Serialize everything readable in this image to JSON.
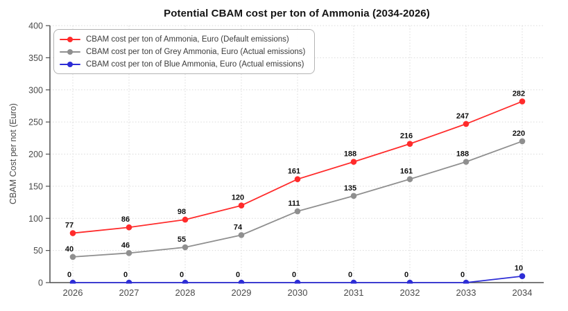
{
  "chart_data": {
    "type": "line",
    "title": "Potential CBAM cost per ton of Ammonia (2034-2026)",
    "xlabel": "",
    "ylabel": "CBAM Cost per not (Euro)",
    "categories": [
      "2026",
      "2027",
      "2028",
      "2029",
      "2030",
      "2031",
      "2032",
      "2033",
      "2034"
    ],
    "yticks": [
      0,
      50,
      100,
      150,
      200,
      250,
      300,
      350,
      400
    ],
    "ylim": [
      0,
      400
    ],
    "grid": true,
    "grid_style": "dashed",
    "legend_position": "upper-left",
    "grid_color": "#d9d9d9",
    "axis_color": "#4d4d4d",
    "tick_color": "#4a4a4a",
    "data_label_color": "#0f0f0f",
    "background_color": "#ffffff",
    "series": [
      {
        "name": "CBAM cost per ton of Ammonia, Euro (Default emissions)",
        "color": "#ff2b2b",
        "values": [
          77,
          86,
          98,
          120,
          161,
          188,
          216,
          247,
          282
        ]
      },
      {
        "name": "CBAM cost per ton of Grey Ammonia, Euro (Actual emissions)",
        "color": "#8f8f8f",
        "values": [
          40,
          46,
          55,
          74,
          111,
          135,
          161,
          188,
          220
        ]
      },
      {
        "name": "CBAM cost per ton of Blue Ammonia, Euro (Actual emissions)",
        "color": "#2d2dd6",
        "values": [
          0,
          0,
          0,
          0,
          0,
          0,
          0,
          0,
          10
        ]
      }
    ]
  }
}
